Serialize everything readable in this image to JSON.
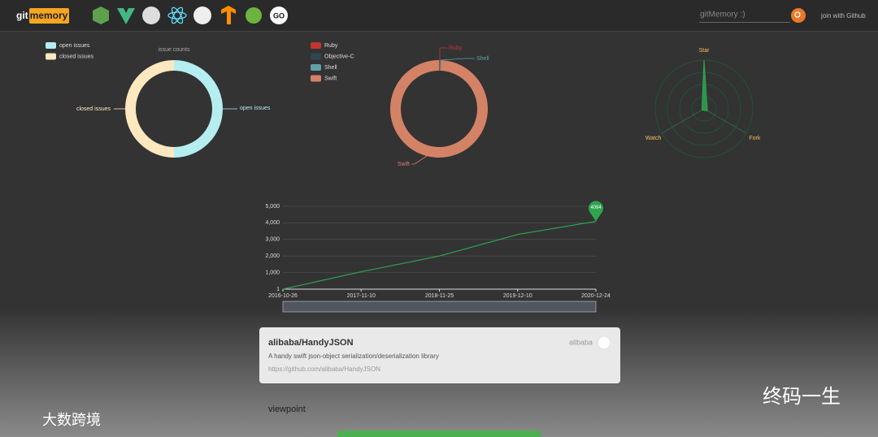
{
  "header": {
    "logo_left": "git",
    "logo_right": "memory",
    "go_icon": "GO",
    "search_placeholder": "gitMemory :)",
    "login": "join with Github"
  },
  "issues_chart": {
    "type": "pie",
    "title": "issue counts",
    "categories": [
      "open issues",
      "closed issues"
    ],
    "values": [
      50,
      50
    ],
    "colors": [
      "#b4eef0",
      "#fde8bf"
    ]
  },
  "language_chart": {
    "type": "pie",
    "categories": [
      "Ruby",
      "Objective-C",
      "Shell",
      "Swift"
    ],
    "values": [
      0.3,
      0.1,
      0.4,
      99.2
    ],
    "colors": [
      "#c23531",
      "#2f4554",
      "#61a0a8",
      "#d48265"
    ]
  },
  "radar_chart": {
    "type": "radar",
    "axes": [
      "Star",
      "Fork",
      "Watch"
    ],
    "values": [
      100,
      8,
      5
    ],
    "color": "#2ea44f"
  },
  "star_chart": {
    "type": "line",
    "x": [
      "2016-10-26",
      "2017-11-10",
      "2018-11-25",
      "2019-12-10",
      "2020-12-24"
    ],
    "values": [
      1,
      1050,
      2000,
      3300,
      4094
    ],
    "color": "#2ea44f",
    "ylim": [
      1,
      5000
    ],
    "yticks": [
      1,
      {
        "value": 1000,
        "label": "1,000"
      },
      {
        "value": 2000,
        "label": "2,000"
      },
      {
        "value": 3000,
        "label": "3,000"
      },
      {
        "value": 4000,
        "label": "4,000"
      },
      {
        "value": 5000,
        "label": "5,000"
      }
    ],
    "grid": true
  },
  "repo_card": {
    "name": "alibaba/HandyJSON",
    "owner": "alibaba",
    "description": "A handy swift json-object serialization/deserialization library",
    "url": "https://github.com/alibaba/HandyJSON"
  },
  "section_title": "viewpoint",
  "watermarks": [
    "终码一生",
    "大数跨境"
  ]
}
